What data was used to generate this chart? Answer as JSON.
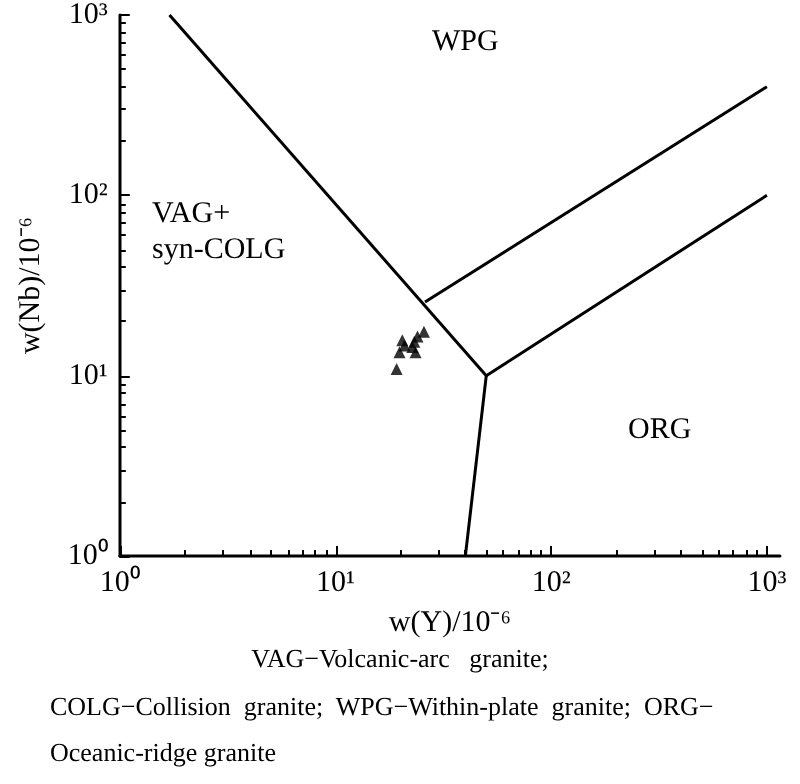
{
  "chart_data": {
    "type": "scatter",
    "xlabel": "w(Y)/10⁻⁶",
    "ylabel": "w(Nb)/10⁻⁶",
    "log": "xy",
    "xlim": [
      1,
      1150
    ],
    "ylim": [
      1,
      1000
    ],
    "xticks": [
      {
        "value": 1,
        "label": "10⁰"
      },
      {
        "value": 10,
        "label": "10¹"
      },
      {
        "value": 100,
        "label": "10²"
      },
      {
        "value": 1000,
        "label": "10³"
      }
    ],
    "yticks": [
      {
        "value": 1,
        "label": "10⁰"
      },
      {
        "value": 10,
        "label": "10¹"
      },
      {
        "value": 100,
        "label": "10²"
      },
      {
        "value": 1000,
        "label": "10³"
      }
    ],
    "grid": false,
    "series": [
      {
        "color": "#000000",
        "marker": "triangle",
        "x": [
          19.2,
          19.8,
          20.9,
          20.4,
          22.7,
          23.2,
          23.5,
          24.0,
          25.7
        ],
        "values": [
          10.9,
          13.5,
          14.7,
          15.7,
          14.4,
          15.4,
          13.5,
          16.5,
          17.5
        ]
      },
      {
        "type": "line",
        "color": "#000000",
        "marker": "none",
        "x": [
          1.7,
          50
        ],
        "values": [
          1000,
          10
        ]
      },
      {
        "type": "line",
        "color": "#000000",
        "marker": "none",
        "x": [
          26,
          1000
        ],
        "values": [
          25.6,
          400
        ]
      },
      {
        "type": "line",
        "color": "#000000",
        "marker": "none",
        "x": [
          50,
          1000
        ],
        "values": [
          10,
          100
        ]
      },
      {
        "type": "line",
        "color": "#000000",
        "marker": "none",
        "x": [
          50,
          40
        ],
        "values": [
          10,
          1
        ]
      }
    ],
    "annotations": [
      "WPG",
      "VAG+\nsyn-COLG",
      "ORG",
      "VAG−Volcanic-arc   granite;",
      "COLG−Collision  granite;  WPG−Within-plate  granite;  ORG−",
      "Oceanic-ridge granite"
    ]
  }
}
